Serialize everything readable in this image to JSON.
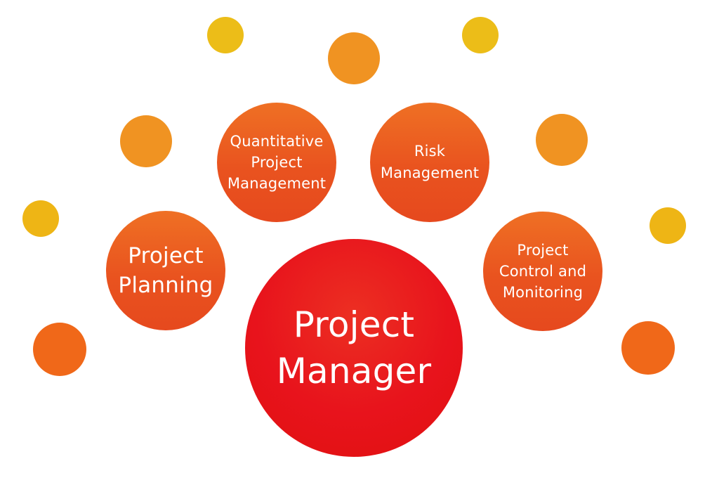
{
  "diagram": {
    "center": {
      "label": "Project\nManager"
    },
    "nodes": [
      {
        "id": "planning",
        "label": "Project\nPlanning"
      },
      {
        "id": "qpm",
        "label": "Quantitative\nProject\nManagement"
      },
      {
        "id": "risk",
        "label": "Risk\nManagement"
      },
      {
        "id": "control",
        "label": "Project\nControl and\nMonitoring"
      }
    ]
  },
  "colors": {
    "center_red": "#e8131c",
    "node_orange": "#e9531f",
    "dot_yellow": "#ecbd18",
    "dot_amber": "#f09322",
    "dot_orange": "#f06819"
  }
}
